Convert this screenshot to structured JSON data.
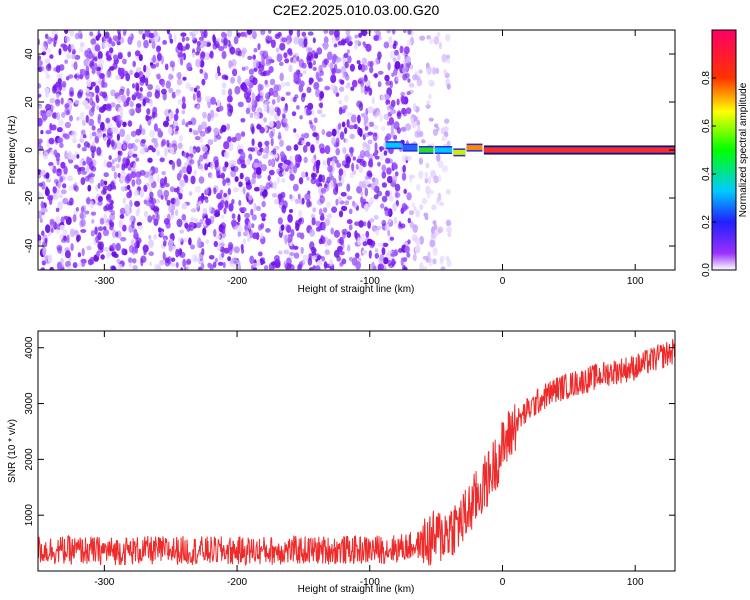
{
  "figure_title": "C2E2.2025.010.03.00.G20",
  "chart_data": [
    {
      "type": "heatmap",
      "xlabel": "Height of straight line (km)",
      "ylabel": "Frequency (Hz)",
      "xlim": [
        -350,
        130
      ],
      "ylim": [
        -50,
        50
      ],
      "x_ticks": [
        -300,
        -200,
        -100,
        0,
        100
      ],
      "y_ticks": [
        -40,
        -20,
        0,
        20,
        40
      ],
      "noise_region_x": [
        -350,
        -70
      ],
      "faded_noise_region_x": [
        -70,
        -40
      ],
      "signal": [
        {
          "x_start": -88,
          "x_end": -76,
          "freq": 2,
          "amp": 0.35
        },
        {
          "x_start": -75,
          "x_end": -64,
          "freq": 1,
          "amp": 0.3
        },
        {
          "x_start": -63,
          "x_end": -52,
          "freq": 0,
          "amp": 0.55
        },
        {
          "x_start": -51,
          "x_end": -38,
          "freq": 0,
          "amp": 0.45
        },
        {
          "x_start": -37,
          "x_end": -28,
          "freq": -1,
          "amp": 0.7
        },
        {
          "x_start": -27,
          "x_end": -15,
          "freq": 1,
          "amp": 0.85
        },
        {
          "x_start": -14,
          "x_end": 130,
          "freq": 0,
          "amp": 0.95
        }
      ],
      "colorbar": {
        "label": "Normalized spectral amplitude",
        "range": [
          0,
          1
        ],
        "ticks": [
          0.0,
          0.2,
          0.4,
          0.6,
          0.8
        ],
        "tick_labels": [
          "0.0",
          "0.2",
          "0.4",
          "0.6",
          "0.8"
        ]
      }
    },
    {
      "type": "line",
      "xlabel": "Height of straight line (km)",
      "ylabel": "SNR (10 * v/v)",
      "xlim": [
        -350,
        130
      ],
      "ylim": [
        0,
        4300
      ],
      "x_ticks": [
        -300,
        -200,
        -100,
        0,
        100
      ],
      "y_ticks": [
        1000,
        2000,
        3000,
        4000
      ],
      "color": "#ee2a2a",
      "series": [
        {
          "x": [
            -350,
            -300,
            -250,
            -200,
            -150,
            -100,
            -80,
            -60,
            -45,
            -30,
            -20,
            -10,
            0,
            10,
            20,
            30,
            40,
            60,
            80,
            100,
            120,
            130
          ],
          "y": [
            380,
            360,
            370,
            360,
            370,
            380,
            400,
            480,
            650,
            900,
            1300,
            1700,
            2200,
            2650,
            2900,
            3100,
            3250,
            3400,
            3550,
            3650,
            3850,
            3950
          ]
        }
      ]
    }
  ]
}
